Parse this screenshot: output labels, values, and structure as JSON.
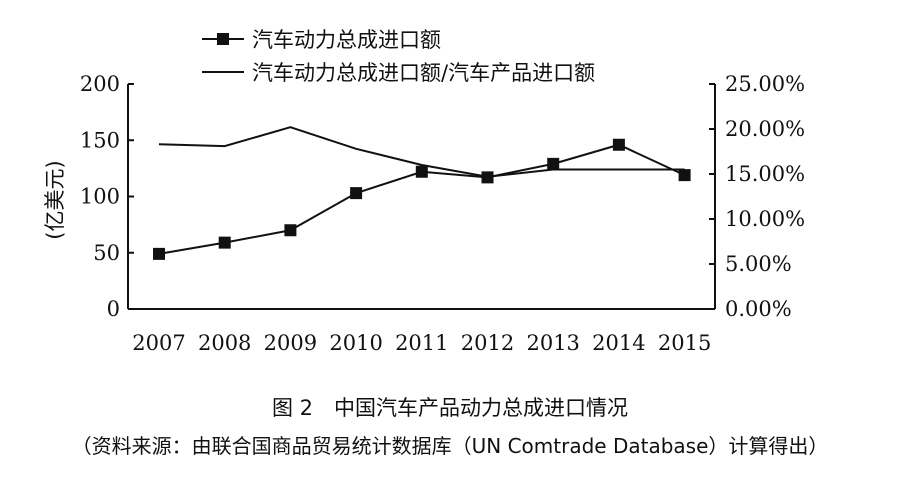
{
  "chart_data": {
    "type": "line",
    "categories": [
      "2007",
      "2008",
      "2009",
      "2010",
      "2011",
      "2012",
      "2013",
      "2014",
      "2015"
    ],
    "series": [
      {
        "name": "汽车动力总成进口额",
        "axis": "left",
        "marker": "square",
        "values": [
          49,
          59,
          70,
          103,
          122,
          117,
          129,
          146,
          119
        ]
      },
      {
        "name": "汽车动力总成进口额/汽车产品进口额",
        "axis": "right",
        "marker": "none",
        "values": [
          18.3,
          18.1,
          20.2,
          17.8,
          16.0,
          14.7,
          15.5,
          15.5,
          15.5
        ]
      }
    ],
    "ylabel": "(亿美元)",
    "ylim": [
      0,
      200
    ],
    "yticks": [
      "0",
      "50",
      "100",
      "150",
      "200"
    ],
    "ylim_right": [
      0,
      25
    ],
    "yticks_right": [
      "0.00%",
      "5.00%",
      "10.00%",
      "15.00%",
      "20.00%",
      "25.00%"
    ],
    "legend_position": "top",
    "grid": false
  },
  "caption": {
    "title": "图 2　中国汽车产品动力总成进口情况",
    "source": "（资料来源：由联合国商品贸易统计数据库（UN Comtrade Database）计算得出）"
  }
}
